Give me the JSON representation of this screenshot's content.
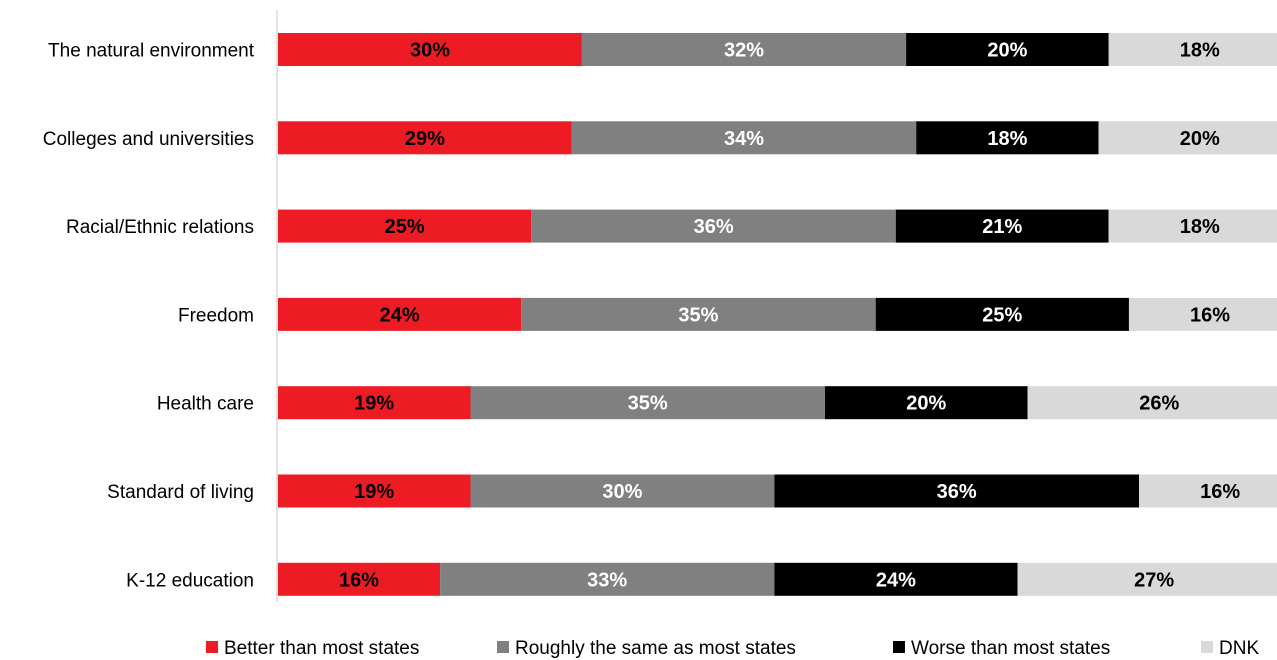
{
  "chart_data": {
    "type": "bar",
    "orientation": "horizontal",
    "stacked": true,
    "title": "",
    "xlabel": "",
    "ylabel": "",
    "xlim": [
      0,
      100
    ],
    "grid": false,
    "legend_position": "bottom",
    "categories": [
      "The natural environment",
      "Colleges and universities",
      "Racial/Ethnic relations",
      "Freedom",
      "Health care",
      "Standard of living",
      "K-12 education"
    ],
    "series": [
      {
        "name": "Better than most states",
        "color": "#ed1c24",
        "label_color": "#000000",
        "values": [
          30,
          29,
          25,
          24,
          19,
          19,
          16
        ],
        "labels": [
          "30%",
          "29%",
          "25%",
          "24%",
          "19%",
          "19%",
          "16%"
        ]
      },
      {
        "name": "Roughly the same as most states",
        "color": "#808080",
        "label_color": "#ffffff",
        "values": [
          32,
          34,
          36,
          35,
          35,
          30,
          33
        ],
        "labels": [
          "32%",
          "34%",
          "36%",
          "35%",
          "35%",
          "30%",
          "33%"
        ]
      },
      {
        "name": "Worse than most states",
        "color": "#000000",
        "label_color": "#ffffff",
        "values": [
          20,
          18,
          21,
          25,
          20,
          36,
          24
        ],
        "labels": [
          "20%",
          "18%",
          "21%",
          "25%",
          "20%",
          "36%",
          "24%"
        ]
      },
      {
        "name": "DNK",
        "color": "#d9d9d9",
        "label_color": "#000000",
        "values": [
          18,
          20,
          18,
          16,
          26,
          16,
          27
        ],
        "labels": [
          "18%",
          "20%",
          "18%",
          "16%",
          "26%",
          "16%",
          "27%"
        ]
      }
    ]
  }
}
